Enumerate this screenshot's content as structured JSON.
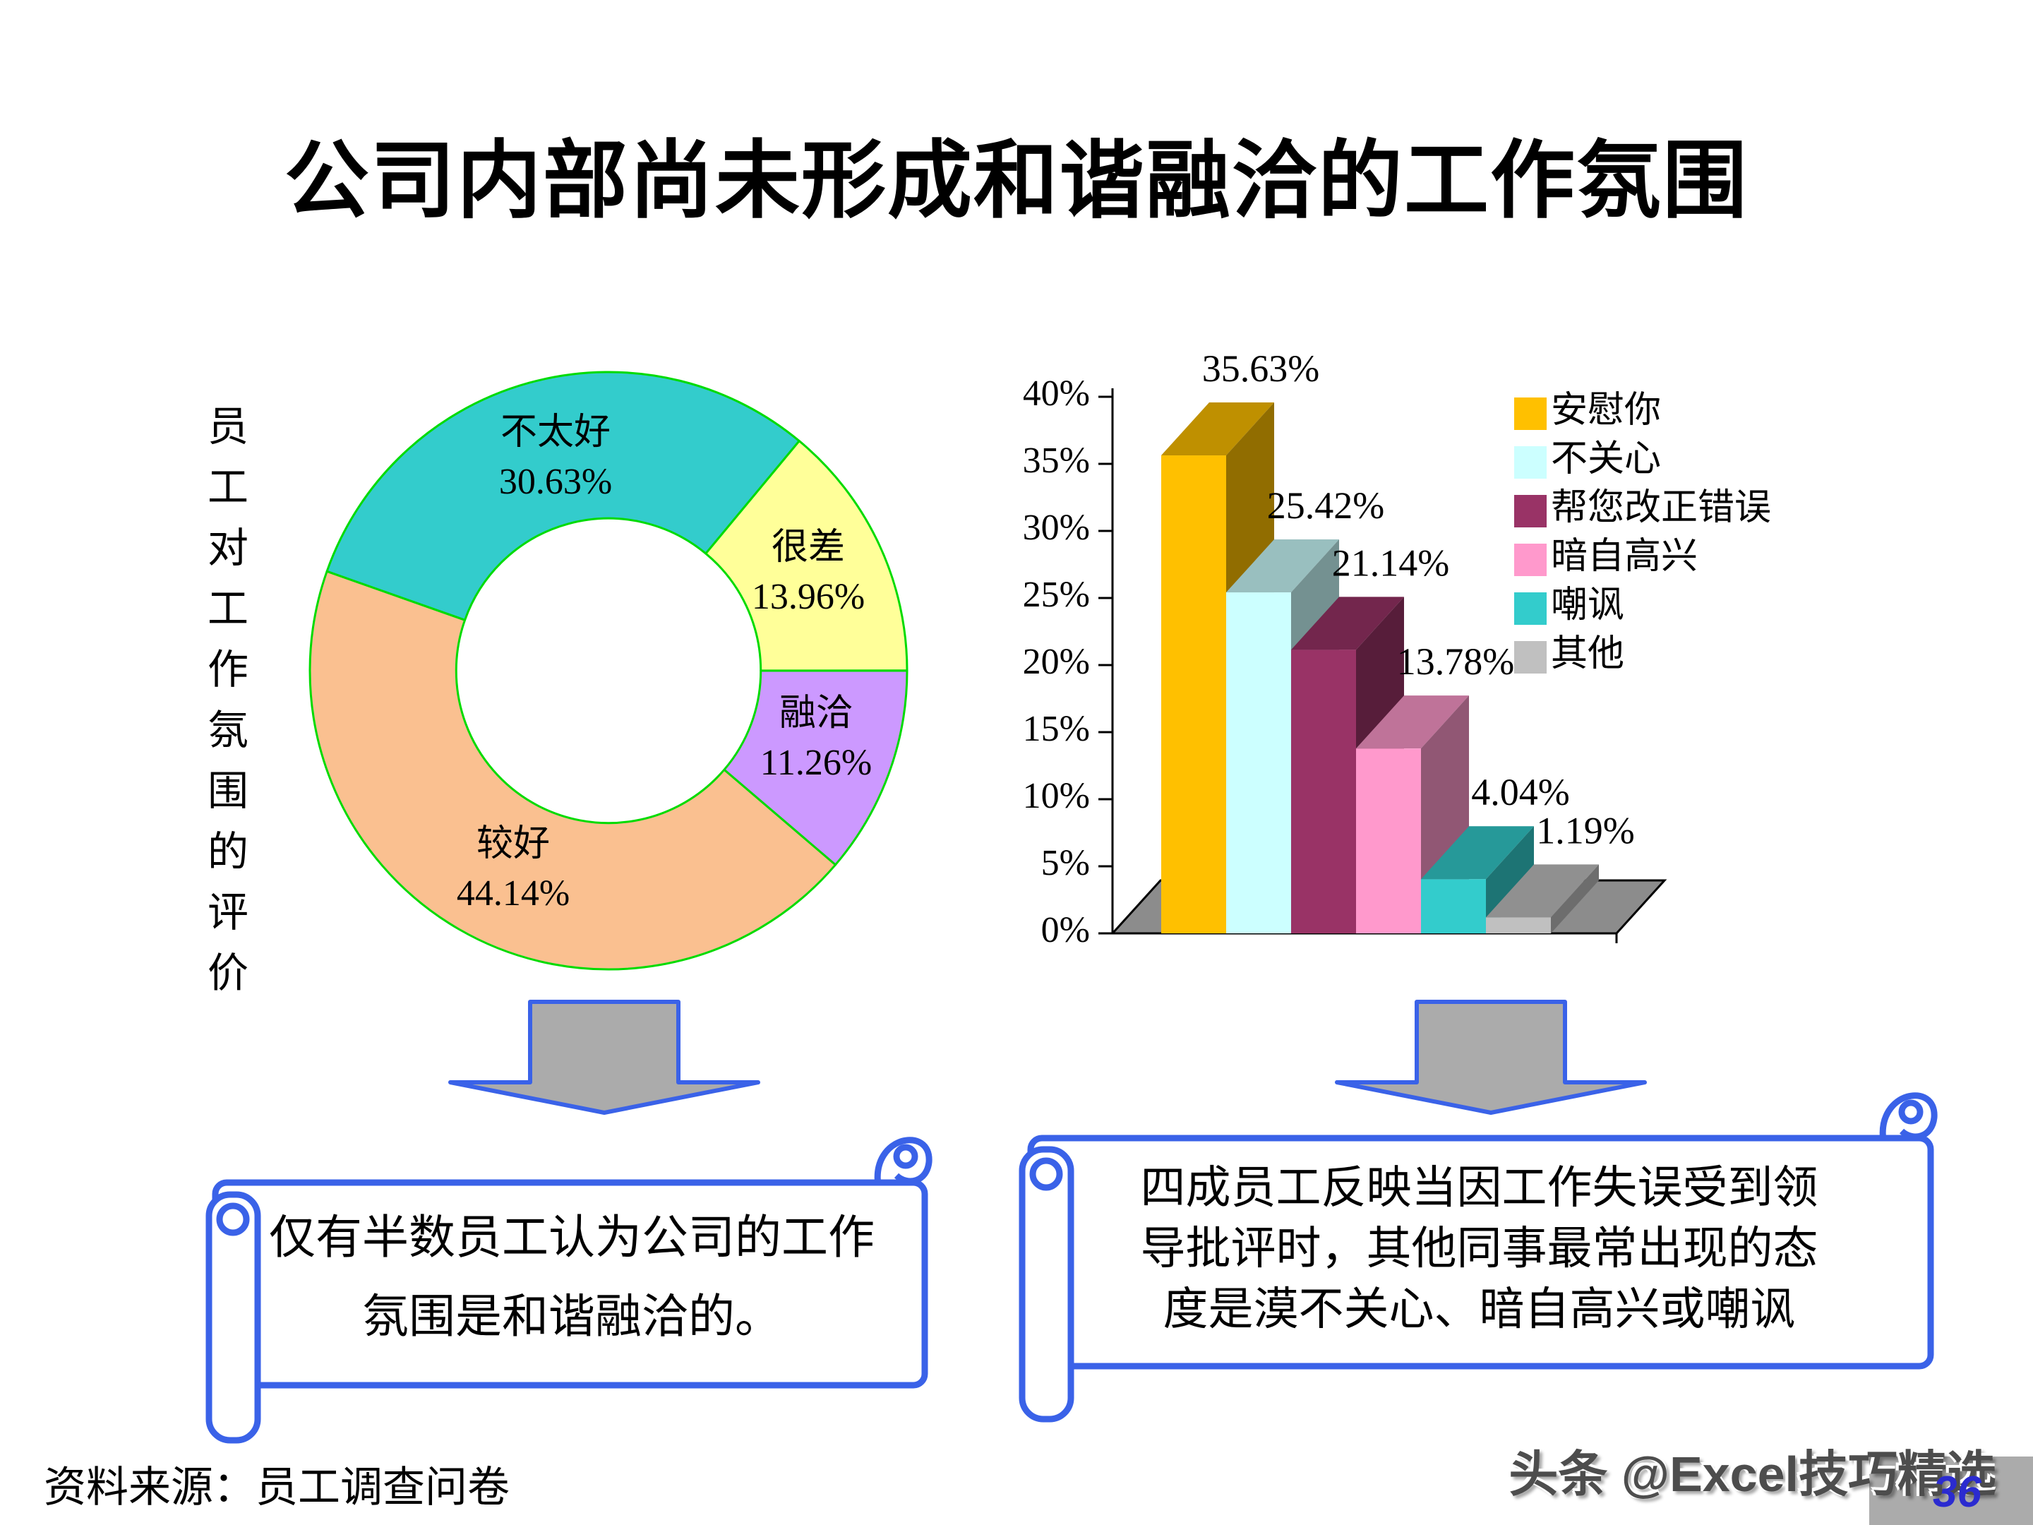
{
  "slide": {
    "title": "公司内部尚未形成和谐融洽的工作氛围",
    "source_note": "资料来源：员工调查问卷",
    "watermark": "头条 @Excel技巧精选",
    "page_number": "36"
  },
  "donut_caption": "员工对工作氛围的评价",
  "left_scroll": {
    "lines": [
      "仅有半数员工认为公司的工作",
      "氛围是和谐融洽的。"
    ]
  },
  "right_scroll": {
    "lines": [
      "四成员工反映当因工作失误受到领",
      "导批评时，其他同事最常出现的态",
      "度是漠不关心、暗自高兴或嘲讽"
    ]
  },
  "colors": {
    "pie_outline": "#00DB00",
    "scroll_border": "#3A62E8",
    "arrow_fill": "#ABABAB",
    "arrow_border": "#3A62E8",
    "floor_gray": "#8C8C8C",
    "page_number_blue": "#2B2BD0"
  },
  "chart_data": [
    {
      "type": "pie",
      "subtype": "donut",
      "title": "",
      "categories": [
        "融洽",
        "较好",
        "不太好",
        "很差"
      ],
      "values": [
        11.26,
        44.14,
        30.63,
        13.96
      ],
      "colors": [
        "#CC99FF",
        "#FAC090",
        "#33CCCC",
        "#FFFF99"
      ],
      "start_angle_deg": 90,
      "hole_ratio": 0.51,
      "label_format": "name + percent",
      "legend_position": "none"
    },
    {
      "type": "bar",
      "subtype": "3d-column",
      "title": "",
      "categories": [
        "安慰你",
        "不关心",
        "帮您改正错误",
        "暗自高兴",
        "嘲讽",
        "其他"
      ],
      "values": [
        35.63,
        25.42,
        21.14,
        13.78,
        4.04,
        1.19
      ],
      "colors": [
        "#FFC000",
        "#CCFFFF",
        "#993366",
        "#FF99CC",
        "#33CCCC",
        "#C0C0C0"
      ],
      "xlabel": "",
      "ylabel": "",
      "ylim": [
        0,
        40
      ],
      "ytick_step": 5,
      "ytick_suffix": "%",
      "grid": false,
      "legend_position": "right",
      "data_labels": true
    }
  ]
}
